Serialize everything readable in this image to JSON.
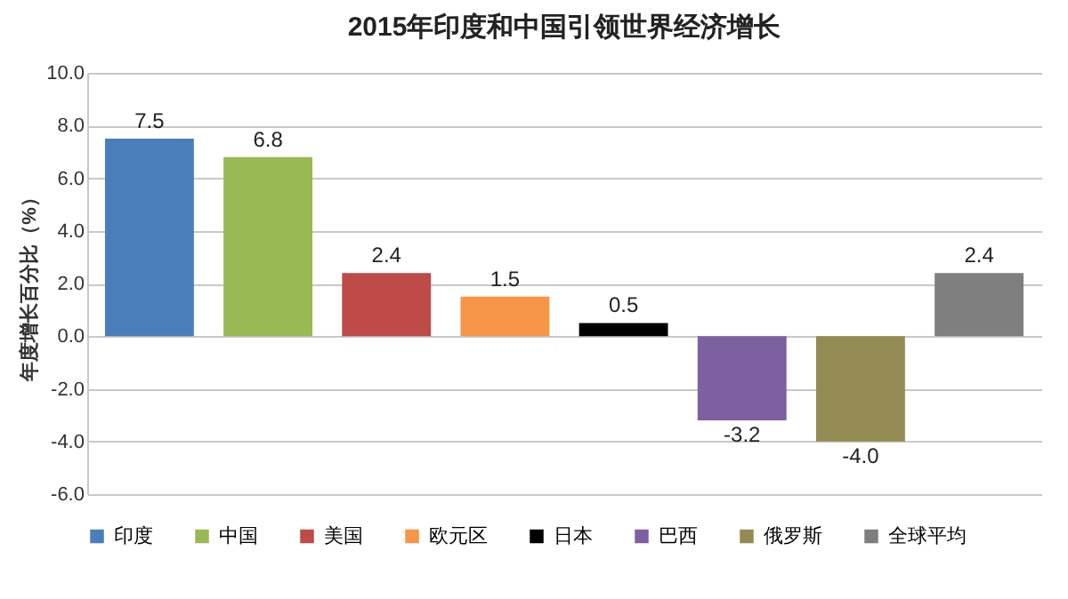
{
  "chart_data": {
    "type": "bar",
    "title": "2015年印度和中国引领世界经济增长",
    "ylabel": "年度增长百分比（%）",
    "categories": [
      null,
      null,
      null,
      null,
      null,
      null,
      null,
      null
    ],
    "series": [
      {
        "name": "印度",
        "color": "#4a7ebb",
        "values": [
          7.5,
          null,
          null,
          null,
          null,
          null,
          null,
          null
        ],
        "value_labels": [
          "7.5",
          null,
          null,
          null,
          null,
          null,
          null,
          null
        ]
      },
      {
        "name": "中国",
        "color": "#98b954",
        "values": [
          null,
          6.8,
          null,
          null,
          null,
          null,
          null,
          null
        ],
        "value_labels": [
          null,
          "6.8",
          null,
          null,
          null,
          null,
          null,
          null
        ]
      },
      {
        "name": "美国",
        "color": "#be4b48",
        "values": [
          null,
          null,
          2.4,
          null,
          null,
          null,
          null,
          null
        ],
        "value_labels": [
          null,
          null,
          "2.4",
          null,
          null,
          null,
          null,
          null
        ]
      },
      {
        "name": "欧元区",
        "color": "#f79646",
        "values": [
          null,
          null,
          null,
          1.5,
          null,
          null,
          null,
          null
        ],
        "value_labels": [
          null,
          null,
          null,
          "1.5",
          null,
          null,
          null,
          null
        ]
      },
      {
        "name": "日本",
        "color": "#000000",
        "values": [
          null,
          null,
          null,
          null,
          0.5,
          null,
          null,
          null
        ],
        "value_labels": [
          null,
          null,
          null,
          null,
          "0.5",
          null,
          null,
          null
        ]
      },
      {
        "name": "巴西",
        "color": "#7d60a0",
        "values": [
          null,
          null,
          null,
          null,
          null,
          -3.2,
          null,
          null
        ],
        "value_labels": [
          null,
          null,
          null,
          null,
          null,
          "-3.2",
          null,
          null
        ]
      },
      {
        "name": "俄罗斯",
        "color": "#948a54",
        "values": [
          null,
          null,
          null,
          null,
          null,
          null,
          -4.0,
          null
        ],
        "value_labels": [
          null,
          null,
          null,
          null,
          null,
          null,
          "-4.0",
          null
        ]
      },
      {
        "name": "全球平均",
        "color": "#7f7f7f",
        "values": [
          null,
          null,
          null,
          null,
          null,
          null,
          null,
          2.4
        ],
        "value_labels": [
          null,
          null,
          null,
          null,
          null,
          null,
          null,
          "2.4"
        ]
      }
    ],
    "ylim": [
      -6,
      10
    ],
    "yticks": [
      {
        "value": -6,
        "label": "-6.0"
      },
      {
        "value": -4,
        "label": "-4.0"
      },
      {
        "value": -2,
        "label": "-2.0"
      },
      {
        "value": 0,
        "label": "0.0"
      },
      {
        "value": 2,
        "label": "2.0"
      },
      {
        "value": 4,
        "label": "4.0"
      },
      {
        "value": 6,
        "label": "6.0"
      },
      {
        "value": 8,
        "label": "8.0"
      },
      {
        "value": 10,
        "label": "10.0"
      }
    ],
    "grid": "y",
    "legend": "bottom",
    "tick_labels": "y"
  }
}
